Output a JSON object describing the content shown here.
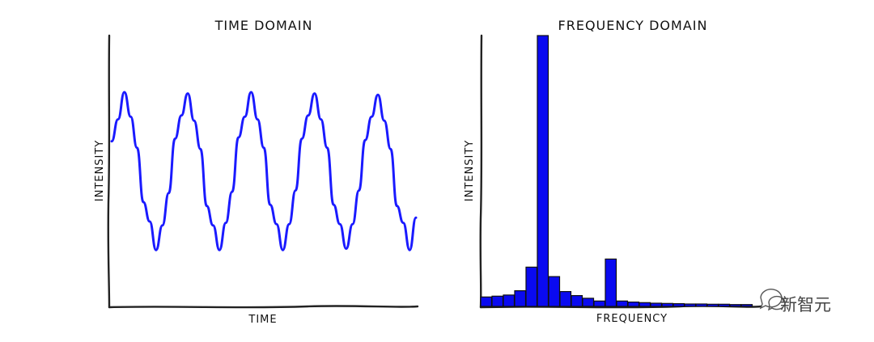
{
  "chart_data": [
    {
      "type": "line",
      "title": "TIME DOMAIN",
      "xlabel": "TIME",
      "ylabel": "INTENSITY",
      "series": [
        {
          "values": [
            0.22,
            0.39,
            0.6,
            0.41,
            0.17,
            -0.25,
            -0.4,
            -0.62,
            -0.43,
            -0.18,
            0.24,
            0.42,
            0.59,
            0.38,
            0.16,
            -0.28,
            -0.43,
            -0.62,
            -0.41,
            -0.17,
            0.25,
            0.41,
            0.6,
            0.39,
            0.17,
            -0.27,
            -0.42,
            -0.62,
            -0.42,
            -0.16,
            0.24,
            0.42,
            0.59,
            0.39,
            0.17,
            -0.27,
            -0.42,
            -0.61,
            -0.42,
            -0.16,
            0.23,
            0.41,
            0.58,
            0.38,
            0.16,
            -0.28,
            -0.41,
            -0.62,
            -0.37
          ]
        }
      ]
    },
    {
      "type": "bar",
      "title": "FREQUENCY DOMAIN",
      "xlabel": "FREQUENCY",
      "ylabel": "INTENSITY",
      "values": [
        3.5,
        3.8,
        4.2,
        5.8,
        14.5,
        100,
        11,
        5.5,
        4,
        3,
        2,
        17.5,
        2,
        1.6,
        1.4,
        1.2,
        1.1,
        1.0,
        0.9,
        0.9,
        0.8,
        0.8,
        0.7,
        0.7
      ]
    }
  ],
  "watermark": {
    "text": "新智元"
  }
}
